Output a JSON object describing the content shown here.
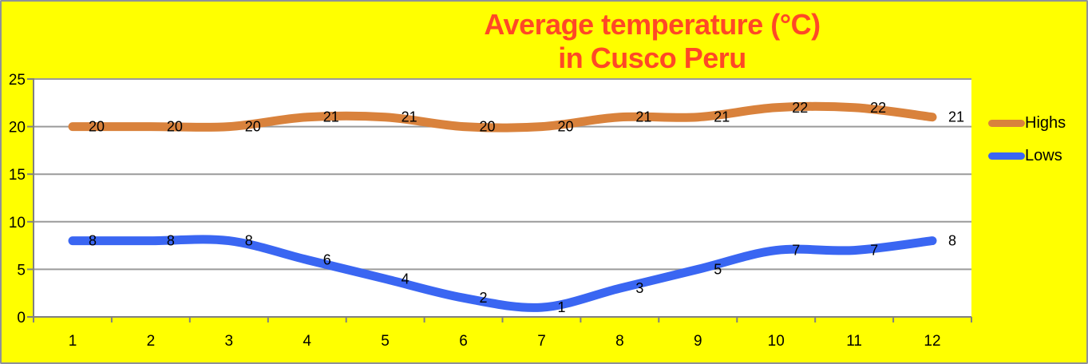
{
  "window": {
    "background_color": "#FFFF00",
    "border_color": "#8F9296"
  },
  "title": {
    "text": "Average temperature (°C)\nin Cusco Peru",
    "color": "#FF4826"
  },
  "legend": {
    "position": "right",
    "items": [
      {
        "label": "Highs",
        "color": "#D9823C"
      },
      {
        "label": "Lows",
        "color": "#3A66F2"
      }
    ]
  },
  "chart_data": {
    "type": "line",
    "title": "Average temperature (°C) in Cusco Peru",
    "xlabel": "",
    "ylabel": "",
    "categories": [
      "1",
      "2",
      "3",
      "4",
      "5",
      "6",
      "7",
      "8",
      "9",
      "10",
      "11",
      "12"
    ],
    "series": [
      {
        "name": "Highs",
        "color": "#D9823C",
        "values": [
          20,
          20,
          20,
          21,
          21,
          20,
          20,
          21,
          21,
          22,
          22,
          21
        ]
      },
      {
        "name": "Lows",
        "color": "#3A66F2",
        "values": [
          8,
          8,
          8,
          6,
          4,
          2,
          1,
          3,
          5,
          7,
          7,
          8
        ]
      }
    ],
    "ylim": [
      0,
      25
    ],
    "yticks": [
      0,
      5,
      10,
      15,
      20,
      25
    ],
    "grid": "horizontal",
    "smooth_lines": true,
    "data_labels": true,
    "legend_position": "right",
    "plot_bg": "#FFFFFF",
    "gridline_color": "#9B9B9B",
    "axis_color": "#808080",
    "label_color": "#000000"
  }
}
